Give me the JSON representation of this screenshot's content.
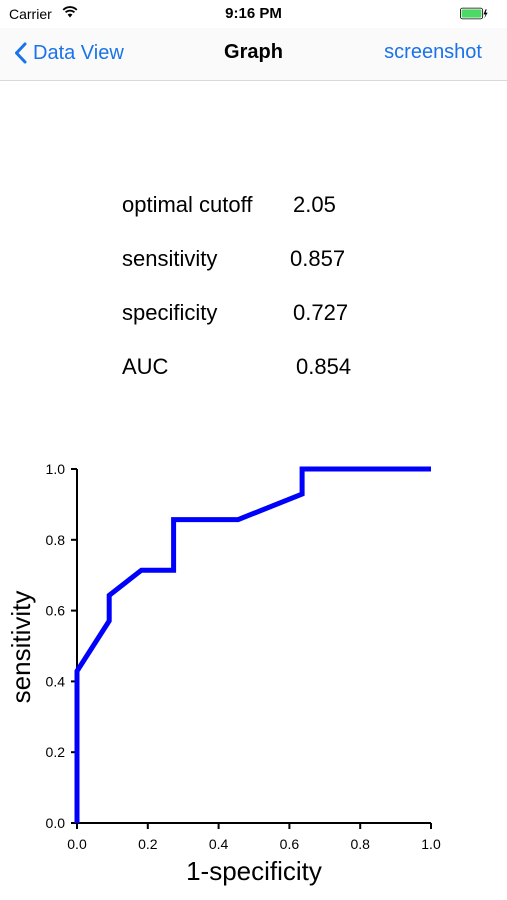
{
  "status": {
    "carrier": "Carrier",
    "time": "9:16 PM"
  },
  "nav": {
    "back_label": "Data View",
    "title": "Graph",
    "right_label": "screenshot"
  },
  "stats": [
    {
      "label": "optimal cutoff",
      "value": "2.05"
    },
    {
      "label": "sensitivity",
      "value": "0.857"
    },
    {
      "label": "specificity",
      "value": "0.727"
    },
    {
      "label": "AUC",
      "value": "0.854"
    }
  ],
  "colors": {
    "accent": "#1a73e8",
    "battery": "#4cd964",
    "curve": "#0000ff"
  },
  "icons": {
    "back": "chevron-left-icon",
    "wifi": "wifi-icon",
    "battery": "battery-icon"
  },
  "chart_data": {
    "type": "line",
    "xlabel": "1-specificity",
    "ylabel": "sensitivity",
    "xlim": [
      0,
      1
    ],
    "ylim": [
      0,
      1
    ],
    "xticks": [
      "0.0",
      "0.2",
      "0.4",
      "0.6",
      "0.8",
      "1.0"
    ],
    "yticks": [
      "0.0",
      "0.2",
      "0.4",
      "0.6",
      "0.8",
      "1.0"
    ],
    "grid": false,
    "series": [
      {
        "x": [
          0,
          0,
          0.091,
          0.091,
          0.182,
          0.273,
          0.273,
          0.455,
          0.636,
          0.636,
          1.0
        ],
        "y": [
          0,
          0.429,
          0.571,
          0.643,
          0.714,
          0.714,
          0.857,
          0.857,
          0.929,
          1.0,
          1.0
        ]
      }
    ]
  }
}
